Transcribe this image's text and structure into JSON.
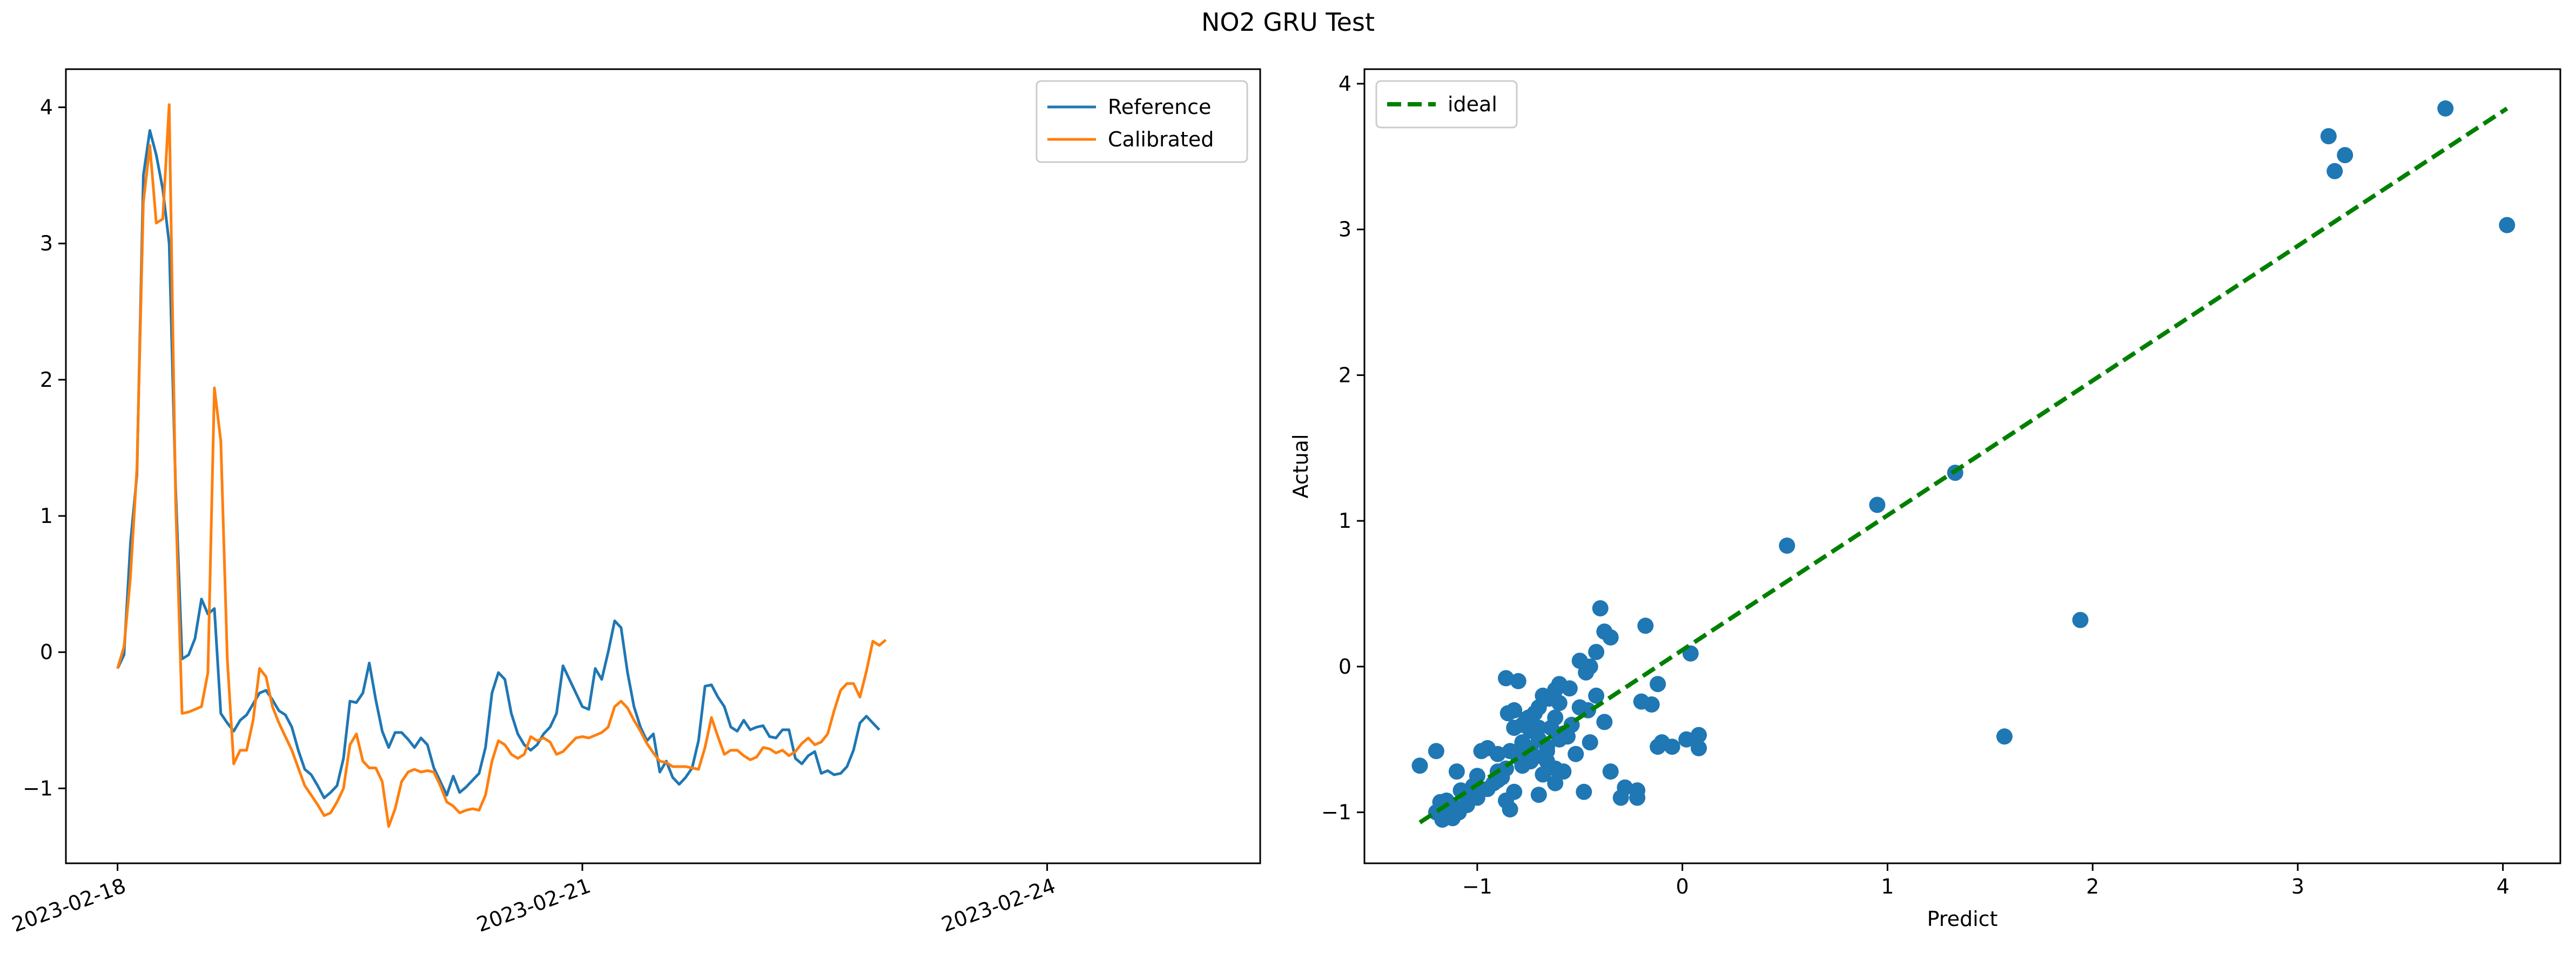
{
  "figure": {
    "title": "NO2 GRU Test"
  },
  "colors": {
    "reference": "#1f77b4",
    "calibrated": "#ff7f0e",
    "scatter": "#1f77b4",
    "ideal": "#008000",
    "axis": "#000000"
  },
  "chart_data": [
    {
      "type": "line",
      "title": "",
      "xlabel": "",
      "ylabel": "",
      "x_type": "date",
      "xlim": [
        "2023-02-17T16:00",
        "2023-02-25T09:00"
      ],
      "ylim": [
        -1.55,
        4.28
      ],
      "xticks": [
        "2023-02-18",
        "2023-02-21",
        "2023-02-24"
      ],
      "yticks": [
        -1,
        0,
        1,
        2,
        3,
        4
      ],
      "ytick_labels": [
        "−1",
        "0",
        "1",
        "2",
        "3",
        "4"
      ],
      "grid": false,
      "legend": "upper right",
      "x_start": "2023-02-18T00:00",
      "x_step_hours": 1,
      "series": [
        {
          "name": "Reference",
          "color": "#1f77b4",
          "values": [
            -0.12,
            -0.02,
            0.8,
            1.3,
            3.5,
            3.83,
            3.65,
            3.4,
            3.0,
            1.2,
            -0.05,
            -0.02,
            0.1,
            0.39,
            0.28,
            0.32,
            -0.45,
            -0.52,
            -0.58,
            -0.5,
            -0.46,
            -0.38,
            -0.3,
            -0.28,
            -0.35,
            -0.43,
            -0.46,
            -0.55,
            -0.72,
            -0.86,
            -0.9,
            -0.98,
            -1.07,
            -1.03,
            -0.98,
            -0.78,
            -0.36,
            -0.37,
            -0.3,
            -0.08,
            -0.35,
            -0.58,
            -0.7,
            -0.59,
            -0.59,
            -0.64,
            -0.7,
            -0.63,
            -0.68,
            -0.85,
            -0.95,
            -1.05,
            -0.91,
            -1.03,
            -0.99,
            -0.94,
            -0.89,
            -0.7,
            -0.3,
            -0.15,
            -0.2,
            -0.45,
            -0.6,
            -0.68,
            -0.72,
            -0.68,
            -0.6,
            -0.55,
            -0.45,
            -0.1,
            -0.2,
            -0.3,
            -0.4,
            -0.42,
            -0.12,
            -0.2,
            0.0,
            0.23,
            0.18,
            -0.15,
            -0.4,
            -0.55,
            -0.65,
            -0.6,
            -0.88,
            -0.8,
            -0.92,
            -0.97,
            -0.92,
            -0.85,
            -0.65,
            -0.25,
            -0.24,
            -0.33,
            -0.4,
            -0.55,
            -0.58,
            -0.5,
            -0.57,
            -0.55,
            -0.54,
            -0.62,
            -0.63,
            -0.57,
            -0.57,
            -0.78,
            -0.82,
            -0.76,
            -0.73,
            -0.89,
            -0.87,
            -0.9,
            -0.89,
            -0.84,
            -0.72,
            -0.52,
            -0.47,
            -0.52,
            -0.57
          ]
        },
        {
          "name": "Calibrated",
          "color": "#ff7f0e",
          "values": [
            -0.12,
            0.04,
            0.55,
            1.35,
            3.3,
            3.72,
            3.15,
            3.18,
            4.02,
            1.1,
            -0.45,
            -0.44,
            -0.42,
            -0.4,
            -0.15,
            1.94,
            1.55,
            -0.05,
            -0.82,
            -0.72,
            -0.72,
            -0.5,
            -0.12,
            -0.18,
            -0.4,
            -0.52,
            -0.62,
            -0.72,
            -0.85,
            -0.98,
            -1.05,
            -1.12,
            -1.2,
            -1.18,
            -1.1,
            -1.0,
            -0.68,
            -0.6,
            -0.8,
            -0.85,
            -0.85,
            -0.95,
            -1.28,
            -1.15,
            -0.95,
            -0.88,
            -0.86,
            -0.88,
            -0.87,
            -0.88,
            -0.98,
            -1.1,
            -1.13,
            -1.18,
            -1.16,
            -1.15,
            -1.16,
            -1.05,
            -0.8,
            -0.65,
            -0.68,
            -0.75,
            -0.78,
            -0.75,
            -0.62,
            -0.65,
            -0.63,
            -0.66,
            -0.75,
            -0.73,
            -0.68,
            -0.63,
            -0.62,
            -0.63,
            -0.61,
            -0.59,
            -0.55,
            -0.4,
            -0.36,
            -0.41,
            -0.5,
            -0.58,
            -0.67,
            -0.74,
            -0.8,
            -0.81,
            -0.84,
            -0.84,
            -0.84,
            -0.85,
            -0.86,
            -0.7,
            -0.48,
            -0.62,
            -0.75,
            -0.72,
            -0.72,
            -0.76,
            -0.79,
            -0.77,
            -0.7,
            -0.71,
            -0.74,
            -0.72,
            -0.76,
            -0.73,
            -0.67,
            -0.63,
            -0.68,
            -0.66,
            -0.6,
            -0.43,
            -0.28,
            -0.23,
            -0.23,
            -0.33,
            -0.14,
            0.08,
            0.05,
            0.09
          ]
        }
      ]
    },
    {
      "type": "scatter",
      "title": "",
      "xlabel": "Predict",
      "ylabel": "Actual",
      "xlim": [
        -1.55,
        4.28
      ],
      "ylim": [
        -1.35,
        4.1
      ],
      "xticks": [
        -1,
        0,
        1,
        2,
        3,
        4
      ],
      "xtick_labels": [
        "−1",
        "0",
        "1",
        "2",
        "3",
        "4"
      ],
      "yticks": [
        -1,
        0,
        1,
        2,
        3,
        4
      ],
      "ytick_labels": [
        "−1",
        "0",
        "1",
        "2",
        "3",
        "4"
      ],
      "grid": false,
      "legend": "upper left",
      "ideal": {
        "name": "ideal",
        "color": "#008000",
        "x": [
          -1.28,
          4.02
        ],
        "y": [
          -1.07,
          3.83
        ]
      },
      "points": [
        [
          3.72,
          3.83
        ],
        [
          3.15,
          3.64
        ],
        [
          3.18,
          3.4
        ],
        [
          3.23,
          3.51
        ],
        [
          4.02,
          3.03
        ],
        [
          1.33,
          1.33
        ],
        [
          0.95,
          1.11
        ],
        [
          0.51,
          0.83
        ],
        [
          1.94,
          0.32
        ],
        [
          1.57,
          -0.48
        ],
        [
          0.04,
          0.09
        ],
        [
          -0.18,
          0.28
        ],
        [
          -0.4,
          0.4
        ],
        [
          -0.38,
          0.24
        ],
        [
          -0.35,
          0.2
        ],
        [
          -0.42,
          0.1
        ],
        [
          -0.45,
          0.0
        ],
        [
          -0.47,
          -0.04
        ],
        [
          -0.5,
          0.04
        ],
        [
          -0.55,
          -0.15
        ],
        [
          -0.6,
          -0.12
        ],
        [
          -0.62,
          -0.16
        ],
        [
          -0.65,
          -0.22
        ],
        [
          -0.68,
          -0.2
        ],
        [
          -0.7,
          -0.28
        ],
        [
          -0.72,
          -0.32
        ],
        [
          -0.75,
          -0.35
        ],
        [
          -0.78,
          -0.4
        ],
        [
          -0.8,
          -0.1
        ],
        [
          -0.86,
          -0.08
        ],
        [
          -0.85,
          -0.32
        ],
        [
          -0.82,
          -0.42
        ],
        [
          -0.78,
          -0.52
        ],
        [
          -0.76,
          -0.6
        ],
        [
          -0.74,
          -0.44
        ],
        [
          -0.7,
          -0.5
        ],
        [
          -0.66,
          -0.55
        ],
        [
          -0.62,
          -0.35
        ],
        [
          -0.58,
          -0.46
        ],
        [
          -0.54,
          -0.4
        ],
        [
          -0.5,
          -0.28
        ],
        [
          -0.46,
          -0.3
        ],
        [
          -0.42,
          -0.2
        ],
        [
          -0.38,
          -0.38
        ],
        [
          -0.12,
          -0.12
        ],
        [
          -0.15,
          -0.26
        ],
        [
          -0.2,
          -0.24
        ],
        [
          -0.1,
          -0.52
        ],
        [
          -0.12,
          -0.55
        ],
        [
          0.02,
          -0.5
        ],
        [
          0.08,
          -0.47
        ],
        [
          0.08,
          -0.56
        ],
        [
          -0.05,
          -0.55
        ],
        [
          -0.28,
          -0.83
        ],
        [
          -0.35,
          -0.72
        ],
        [
          -0.3,
          -0.9
        ],
        [
          -0.48,
          -0.86
        ],
        [
          -0.62,
          -0.7
        ],
        [
          -0.68,
          -0.74
        ],
        [
          -0.7,
          -0.88
        ],
        [
          -0.74,
          -0.65
        ],
        [
          -0.8,
          -0.62
        ],
        [
          -0.84,
          -0.58
        ],
        [
          -0.86,
          -0.7
        ],
        [
          -0.88,
          -0.76
        ],
        [
          -0.9,
          -0.72
        ],
        [
          -0.92,
          -0.8
        ],
        [
          -0.95,
          -0.56
        ],
        [
          -0.98,
          -0.58
        ],
        [
          -1.0,
          -0.75
        ],
        [
          -1.02,
          -0.82
        ],
        [
          -1.05,
          -0.9
        ],
        [
          -1.08,
          -0.85
        ],
        [
          -1.1,
          -0.72
        ],
        [
          -1.12,
          -0.95
        ],
        [
          -1.15,
          -0.92
        ],
        [
          -1.18,
          -0.93
        ],
        [
          -1.2,
          -1.0
        ],
        [
          -1.17,
          -1.05
        ],
        [
          -1.14,
          -0.98
        ],
        [
          -1.12,
          -1.04
        ],
        [
          -1.09,
          -1.0
        ],
        [
          -1.05,
          -0.95
        ],
        [
          -1.0,
          -0.9
        ],
        [
          -0.95,
          -0.84
        ],
        [
          -0.9,
          -0.78
        ],
        [
          -0.86,
          -0.92
        ],
        [
          -0.84,
          -0.98
        ],
        [
          -0.82,
          -0.86
        ],
        [
          -0.78,
          -0.68
        ],
        [
          -0.72,
          -0.62
        ],
        [
          -0.66,
          -0.58
        ],
        [
          -0.6,
          -0.5
        ],
        [
          -0.56,
          -0.48
        ],
        [
          -1.2,
          -0.58
        ],
        [
          -1.28,
          -0.68
        ],
        [
          -0.62,
          -0.8
        ],
        [
          -0.58,
          -0.72
        ],
        [
          -0.64,
          -0.42
        ],
        [
          -0.7,
          -0.42
        ],
        [
          -0.76,
          -0.36
        ],
        [
          -0.82,
          -0.3
        ],
        [
          -0.9,
          -0.6
        ],
        [
          -0.52,
          -0.6
        ],
        [
          -0.45,
          -0.52
        ],
        [
          -0.66,
          -0.65
        ],
        [
          -0.6,
          -0.25
        ],
        [
          -0.74,
          -0.56
        ],
        [
          -0.22,
          -0.85
        ],
        [
          -0.22,
          -0.9
        ]
      ]
    }
  ]
}
